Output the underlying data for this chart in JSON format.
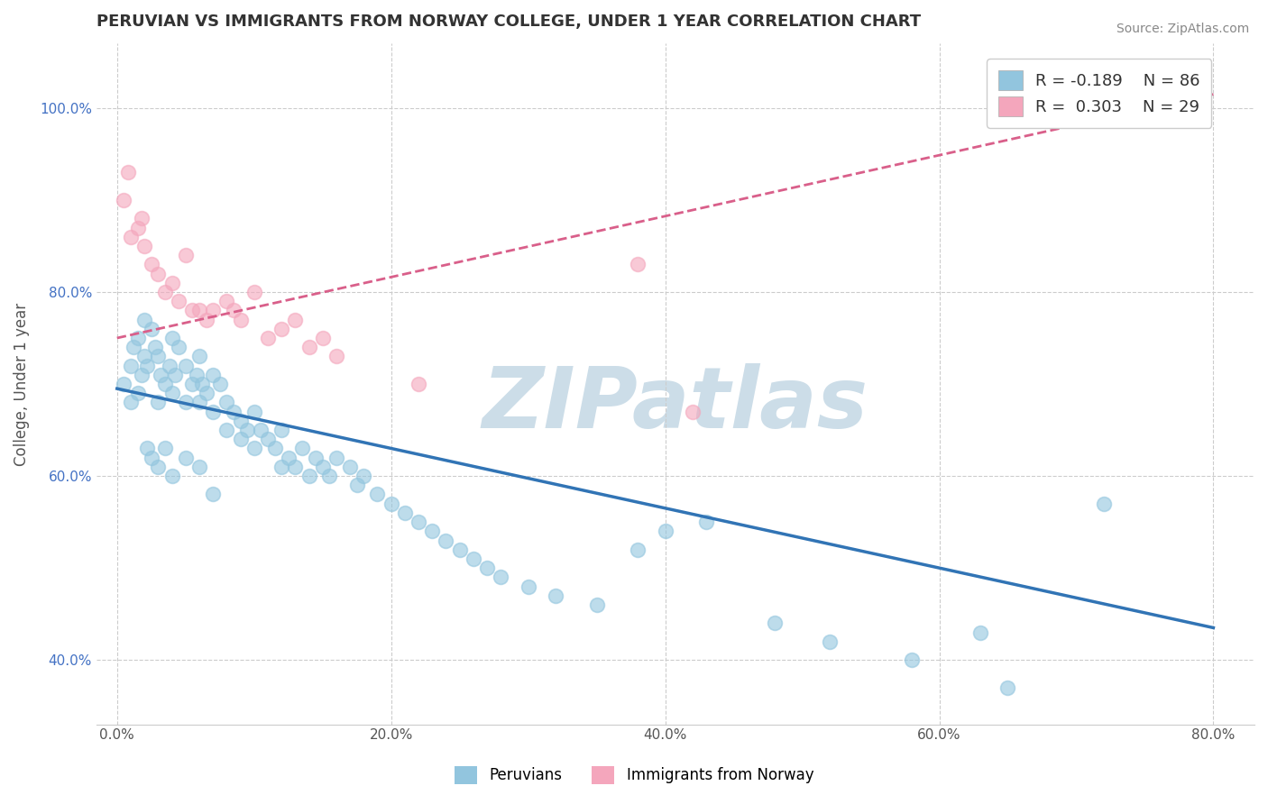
{
  "title": "PERUVIAN VS IMMIGRANTS FROM NORWAY COLLEGE, UNDER 1 YEAR CORRELATION CHART",
  "source": "Source: ZipAtlas.com",
  "xlabel_vals": [
    0.0,
    20.0,
    40.0,
    60.0,
    80.0
  ],
  "ylabel_vals": [
    40.0,
    60.0,
    80.0,
    100.0
  ],
  "xlim": [
    -1.5,
    83
  ],
  "ylim": [
    33,
    107
  ],
  "legend_blue_r": "R = -0.189",
  "legend_blue_n": "N = 86",
  "legend_pink_r": "R =  0.303",
  "legend_pink_n": "N = 29",
  "legend_label_blue": "Peruvians",
  "legend_label_pink": "Immigrants from Norway",
  "blue_color": "#92c5de",
  "pink_color": "#f4a6bc",
  "blue_line_color": "#3174b5",
  "pink_line_color": "#d95f8a",
  "watermark": "ZIPatlas",
  "watermark_color": "#ccdde8",
  "blue_scatter_x": [
    0.5,
    1.0,
    1.0,
    1.2,
    1.5,
    1.5,
    1.8,
    2.0,
    2.0,
    2.2,
    2.5,
    2.8,
    3.0,
    3.0,
    3.2,
    3.5,
    3.8,
    4.0,
    4.0,
    4.2,
    4.5,
    5.0,
    5.0,
    5.5,
    5.8,
    6.0,
    6.0,
    6.2,
    6.5,
    7.0,
    7.0,
    7.5,
    8.0,
    8.0,
    8.5,
    9.0,
    9.0,
    9.5,
    10.0,
    10.0,
    10.5,
    11.0,
    11.5,
    12.0,
    12.0,
    12.5,
    13.0,
    13.5,
    14.0,
    14.5,
    15.0,
    15.5,
    16.0,
    17.0,
    17.5,
    18.0,
    19.0,
    20.0,
    21.0,
    22.0,
    23.0,
    24.0,
    25.0,
    26.0,
    27.0,
    28.0,
    30.0,
    32.0,
    35.0,
    38.0,
    40.0,
    43.0,
    48.0,
    52.0,
    58.0,
    63.0,
    65.0,
    72.0,
    2.2,
    2.5,
    3.0,
    3.5,
    4.0,
    5.0,
    6.0,
    7.0
  ],
  "blue_scatter_y": [
    70.0,
    72.0,
    68.0,
    74.0,
    75.0,
    69.0,
    71.0,
    77.0,
    73.0,
    72.0,
    76.0,
    74.0,
    73.0,
    68.0,
    71.0,
    70.0,
    72.0,
    75.0,
    69.0,
    71.0,
    74.0,
    72.0,
    68.0,
    70.0,
    71.0,
    73.0,
    68.0,
    70.0,
    69.0,
    71.0,
    67.0,
    70.0,
    68.0,
    65.0,
    67.0,
    66.0,
    64.0,
    65.0,
    67.0,
    63.0,
    65.0,
    64.0,
    63.0,
    65.0,
    61.0,
    62.0,
    61.0,
    63.0,
    60.0,
    62.0,
    61.0,
    60.0,
    62.0,
    61.0,
    59.0,
    60.0,
    58.0,
    57.0,
    56.0,
    55.0,
    54.0,
    53.0,
    52.0,
    51.0,
    50.0,
    49.0,
    48.0,
    47.0,
    46.0,
    52.0,
    54.0,
    55.0,
    44.0,
    42.0,
    40.0,
    43.0,
    37.0,
    57.0,
    63.0,
    62.0,
    61.0,
    63.0,
    60.0,
    62.0,
    61.0,
    58.0
  ],
  "pink_scatter_x": [
    0.5,
    1.0,
    1.5,
    2.0,
    2.5,
    3.0,
    3.5,
    4.0,
    4.5,
    5.0,
    5.5,
    6.0,
    6.5,
    7.0,
    8.0,
    8.5,
    9.0,
    10.0,
    11.0,
    12.0,
    13.0,
    14.0,
    15.0,
    16.0,
    22.0,
    38.0,
    42.0,
    0.8,
    1.8
  ],
  "pink_scatter_y": [
    90.0,
    86.0,
    87.0,
    85.0,
    83.0,
    82.0,
    80.0,
    81.0,
    79.0,
    84.0,
    78.0,
    78.0,
    77.0,
    78.0,
    79.0,
    78.0,
    77.0,
    80.0,
    75.0,
    76.0,
    77.0,
    74.0,
    75.0,
    73.0,
    70.0,
    83.0,
    67.0,
    93.0,
    88.0
  ],
  "blue_trendline_x": [
    0,
    80
  ],
  "blue_trendline_y": [
    69.5,
    43.5
  ],
  "pink_trendline_x": [
    0,
    80
  ],
  "pink_trendline_y": [
    75.0,
    101.5
  ]
}
